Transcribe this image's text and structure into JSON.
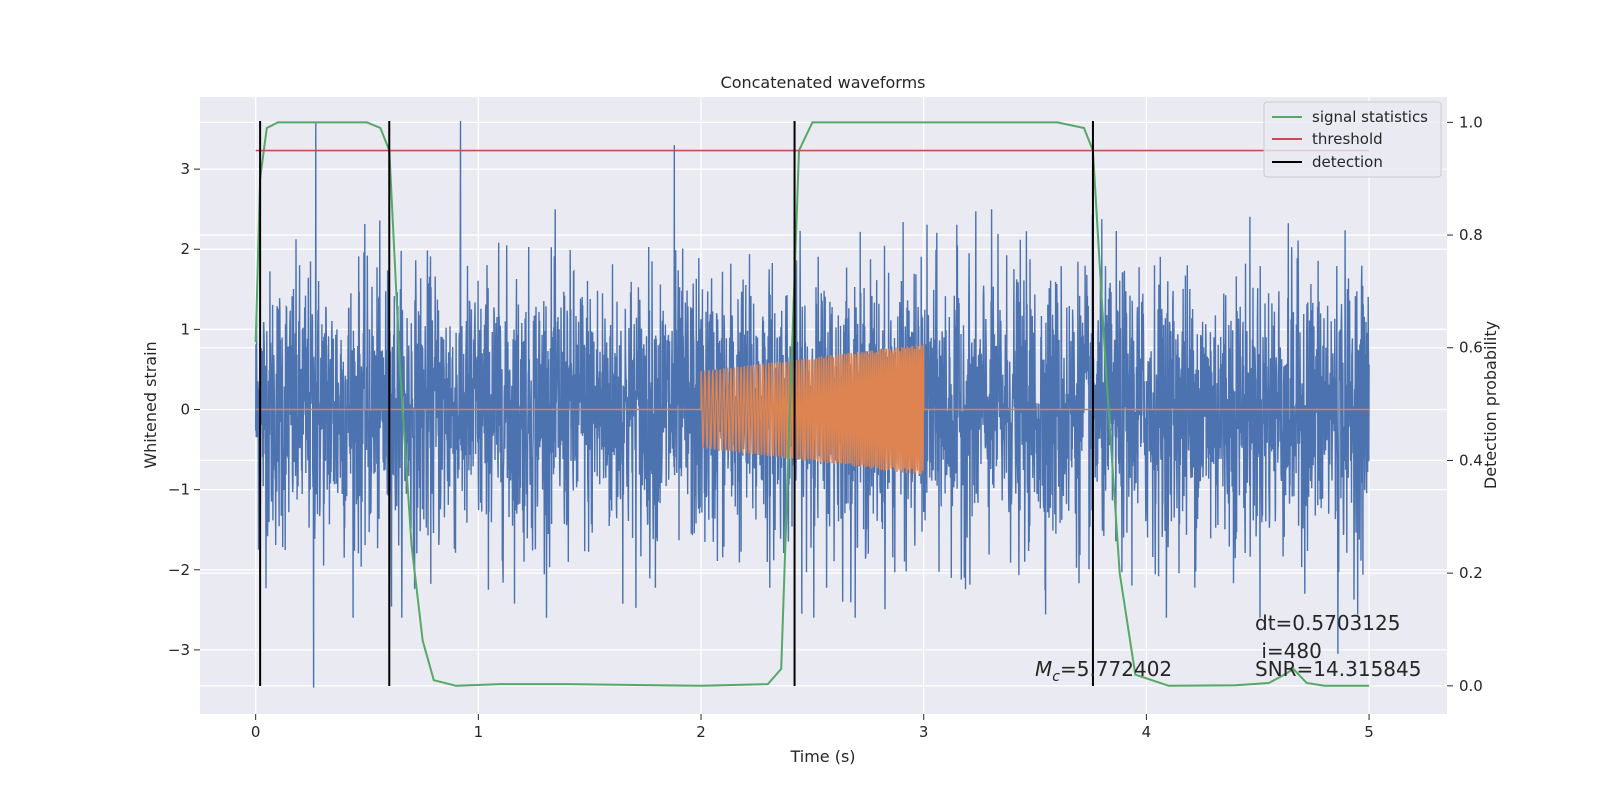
{
  "chart_data": {
    "type": "line",
    "title": "Concatenated waveforms",
    "xlabel": "Time (s)",
    "ylabel": "Whitened strain",
    "ylabel_right": "Detection probability",
    "xlim": [
      -0.25,
      5.35
    ],
    "ylim": [
      -3.8,
      3.9
    ],
    "ylim_right": [
      -0.05,
      1.045
    ],
    "xticks": [
      0,
      1,
      2,
      3,
      4,
      5
    ],
    "xtick_labels": [
      "0",
      "1",
      "2",
      "3",
      "4",
      "5"
    ],
    "yticks": [
      -3,
      -2,
      -1,
      0,
      1,
      2,
      3
    ],
    "ytick_labels": [
      "−3",
      "−2",
      "−1",
      "0",
      "1",
      "2",
      "3"
    ],
    "yticks_right": [
      0.0,
      0.2,
      0.4,
      0.6,
      0.8,
      1.0
    ],
    "ytick_labels_right": [
      "0.0",
      "0.2",
      "0.4",
      "0.6",
      "0.8",
      "1.0"
    ],
    "grid": true,
    "legend_position": "top-right",
    "series": [
      {
        "name": "",
        "kind": "noise",
        "color": "#4c72b0",
        "axis": "left",
        "x_range": [
          0,
          5
        ],
        "y_band": [
          -0.65,
          0.65
        ],
        "y_spike_range": [
          -3.5,
          3.6
        ],
        "sample_peaks": [
          {
            "x": 0.27,
            "y": 3.57
          },
          {
            "x": 0.92,
            "y": 3.6
          },
          {
            "x": 0.26,
            "y": -3.47
          },
          {
            "x": 1.88,
            "y": 3.3
          },
          {
            "x": 4.86,
            "y": -3.05
          }
        ]
      },
      {
        "name": "",
        "kind": "chirp",
        "color": "#dd8452",
        "axis": "left",
        "x_range": [
          2.0,
          3.0
        ],
        "amplitude_start": 0.48,
        "amplitude_end": 0.82,
        "baseline": 0
      },
      {
        "name": "signal statistics",
        "color": "#55a868",
        "axis": "right",
        "x": [
          0.0,
          0.02,
          0.05,
          0.1,
          0.5,
          0.56,
          0.6,
          0.65,
          0.7,
          0.75,
          0.8,
          0.9,
          1.1,
          1.4,
          2.0,
          2.3,
          2.36,
          2.4,
          2.44,
          2.5,
          3.6,
          3.72,
          3.76,
          3.82,
          3.88,
          3.95,
          4.1,
          4.4,
          4.55,
          4.62,
          4.66,
          4.72,
          4.8,
          5.0
        ],
        "y": [
          0.61,
          0.9,
          0.99,
          1.0,
          1.0,
          0.99,
          0.95,
          0.55,
          0.25,
          0.08,
          0.01,
          0.0,
          0.003,
          0.003,
          0.0,
          0.003,
          0.03,
          0.5,
          0.95,
          1.0,
          1.0,
          0.99,
          0.95,
          0.55,
          0.2,
          0.02,
          0.0,
          0.001,
          0.005,
          0.02,
          0.03,
          0.005,
          0.0,
          0.0
        ]
      },
      {
        "name": "threshold",
        "color": "#c44e52",
        "axis": "right",
        "x": [
          0,
          5
        ],
        "y": [
          0.95,
          0.95
        ]
      },
      {
        "name": "detection",
        "color": "#000000",
        "kind": "vlines",
        "x": [
          0.02,
          0.6,
          2.42,
          3.76
        ],
        "y_range": [
          -3.45,
          3.6
        ]
      }
    ],
    "annotations": [
      {
        "text": "dt=0.5703125",
        "x": 4.5,
        "y": -2.67
      },
      {
        "text": " i=480",
        "x": 4.5,
        "y": -3.05
      },
      {
        "text": "SNR=14.315845",
        "x": 4.5,
        "y": -3.25
      },
      {
        "text_prefix": "M",
        "text_sub": "c",
        "text_rest": "=5.772402",
        "x": 3.5,
        "y": -3.25
      }
    ]
  },
  "colors": {
    "axes_bg": "#eaeaf2",
    "grid": "#ffffff",
    "noise": "#4c72b0",
    "chirp": "#dd8452",
    "signal_statistics": "#55a868",
    "threshold": "#c44e52",
    "detection": "#000000"
  }
}
